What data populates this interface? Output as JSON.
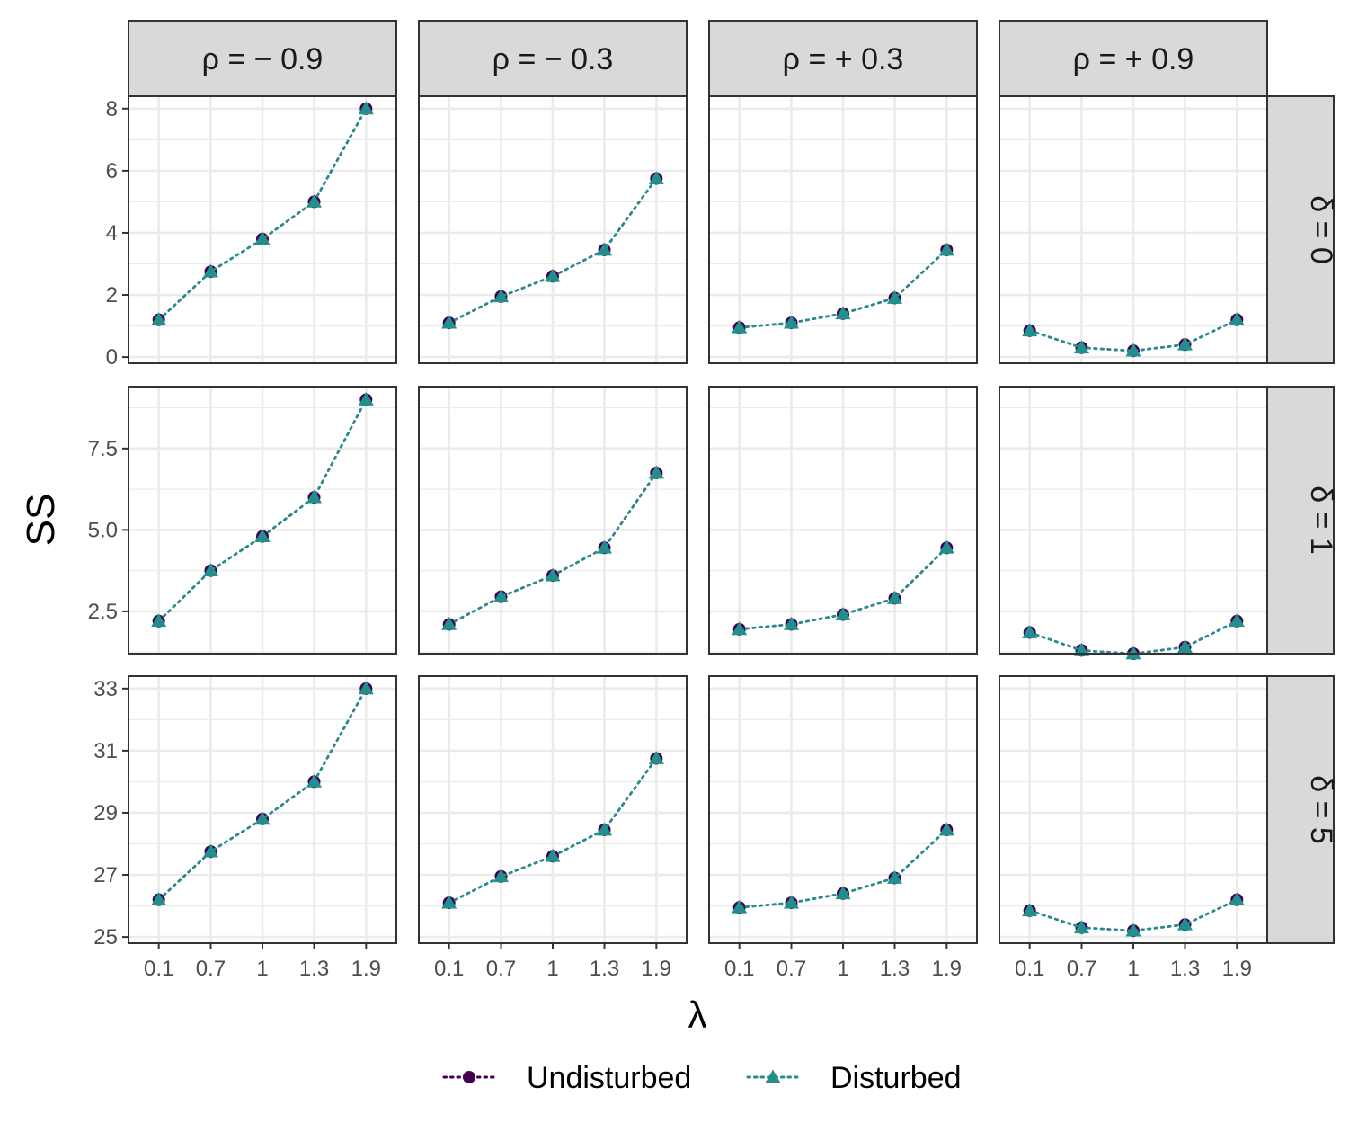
{
  "chart_data": {
    "type": "line",
    "x": [
      "0.1",
      "0.7",
      "1",
      "1.3",
      "1.9"
    ],
    "xlabel": "λ",
    "ylabel": "SS",
    "col_facets": [
      "ρ = − 0.9",
      "ρ = − 0.3",
      "ρ = + 0.3",
      "ρ = + 0.9"
    ],
    "row_facets": [
      {
        "label": "δ = 0",
        "ylim": [
          -0.2,
          8.4
        ],
        "yticks": [
          0,
          2,
          4,
          6,
          8
        ],
        "ytick_labels": [
          "0",
          "2",
          "4",
          "6",
          "8"
        ],
        "yminor": [
          1,
          3,
          5,
          7
        ]
      },
      {
        "label": "δ = 1",
        "ylim": [
          1.2,
          9.4
        ],
        "yticks": [
          2.5,
          5.0,
          7.5
        ],
        "ytick_labels": [
          "2.5",
          "5.0",
          "7.5"
        ],
        "yminor": [
          1.25,
          3.75,
          6.25,
          8.75
        ]
      },
      {
        "label": "δ = 5",
        "ylim": [
          24.8,
          33.4
        ],
        "yticks": [
          25,
          27,
          29,
          31,
          33
        ],
        "ytick_labels": [
          "25",
          "27",
          "29",
          "31",
          "33"
        ],
        "yminor": [
          26,
          28,
          30,
          32
        ]
      }
    ],
    "series": [
      {
        "name": "Undisturbed",
        "color": "#440154",
        "marker": "circle",
        "values": [
          [
            [
              1.2,
              2.75,
              3.8,
              5.0,
              8.0
            ],
            [
              1.1,
              1.95,
              2.6,
              3.45,
              5.75
            ],
            [
              0.95,
              1.1,
              1.4,
              1.9,
              3.45
            ],
            [
              0.85,
              0.3,
              0.2,
              0.4,
              1.2
            ]
          ],
          [
            [
              2.2,
              3.75,
              4.8,
              6.0,
              9.0
            ],
            [
              2.1,
              2.95,
              3.6,
              4.45,
              6.75
            ],
            [
              1.95,
              2.1,
              2.4,
              2.9,
              4.45
            ],
            [
              1.85,
              1.3,
              1.2,
              1.4,
              2.2
            ]
          ],
          [
            [
              26.2,
              27.75,
              28.8,
              30.0,
              33.0
            ],
            [
              26.1,
              26.95,
              27.6,
              28.45,
              30.75
            ],
            [
              25.95,
              26.1,
              26.4,
              26.9,
              28.45
            ],
            [
              25.85,
              25.3,
              25.2,
              25.4,
              26.2
            ]
          ]
        ]
      },
      {
        "name": "Disturbed",
        "color": "#21908C",
        "marker": "triangle",
        "values": [
          [
            [
              1.2,
              2.75,
              3.8,
              5.0,
              8.0
            ],
            [
              1.1,
              1.95,
              2.6,
              3.45,
              5.75
            ],
            [
              0.95,
              1.1,
              1.4,
              1.9,
              3.45
            ],
            [
              0.85,
              0.3,
              0.2,
              0.4,
              1.2
            ]
          ],
          [
            [
              2.2,
              3.75,
              4.8,
              6.0,
              9.0
            ],
            [
              2.1,
              2.95,
              3.6,
              4.45,
              6.75
            ],
            [
              1.95,
              2.1,
              2.4,
              2.9,
              4.45
            ],
            [
              1.85,
              1.3,
              1.2,
              1.4,
              2.2
            ]
          ],
          [
            [
              26.2,
              27.75,
              28.8,
              30.0,
              33.0
            ],
            [
              26.1,
              26.95,
              27.6,
              28.45,
              30.75
            ],
            [
              25.95,
              26.1,
              26.4,
              26.9,
              28.45
            ],
            [
              25.85,
              25.3,
              25.2,
              25.4,
              26.2
            ]
          ]
        ]
      }
    ],
    "grid": true,
    "legend_position": "bottom"
  }
}
